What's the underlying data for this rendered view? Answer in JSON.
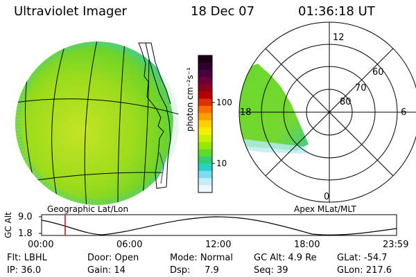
{
  "header": {
    "title": "Ultraviolet Imager",
    "date": "18 Dec 07",
    "time": "01:36:18 UT"
  },
  "left_panel": {
    "caption": "Geographic Lat/Lon"
  },
  "colorbar": {
    "unit_label": "photon cm⁻²s⁻¹",
    "ticks": [
      "100",
      "10"
    ],
    "colors": [
      "#1a0014",
      "#2e0030",
      "#4a0040",
      "#6b0038",
      "#8c0020",
      "#b40000",
      "#e03000",
      "#ff6f00",
      "#ffa000",
      "#ffd000",
      "#f4f000",
      "#c8f000",
      "#96e800",
      "#5cdc28",
      "#30d070",
      "#28d0c8",
      "#7cdcf4",
      "#c8ecf8",
      "#eef8fc"
    ]
  },
  "polar_panel": {
    "caption": "Apex MLat/MLT",
    "mlt_labels": {
      "top": "12",
      "left": "18",
      "right": "6",
      "bottom": "0"
    },
    "lat_labels": [
      "60",
      "70",
      "80"
    ]
  },
  "timeline": {
    "ylabel": "GC Alt",
    "ymax": "9.0",
    "ymin": "1.8",
    "xticks": [
      "00:00",
      "06:00",
      "12:00",
      "18:00",
      "23:59"
    ],
    "current_marker_time": "01:36"
  },
  "info": {
    "flt": "Flt: LBHL",
    "ip": "IP: 36.0",
    "door": "Door: Open",
    "gain": "Gain: 14",
    "mode": "Mode: Normal",
    "dsp": "Dsp:     7.9",
    "gcalt": "GC Alt: 4.9 Re",
    "seq": "Seq: 39",
    "glat": "GLat: -54.7",
    "glon": "GLon: 217.6"
  },
  "colors": {
    "green": "#7cd820",
    "yellowgreen": "#b8e020",
    "cyan": "#40d0a0",
    "marker": "#e00000"
  }
}
